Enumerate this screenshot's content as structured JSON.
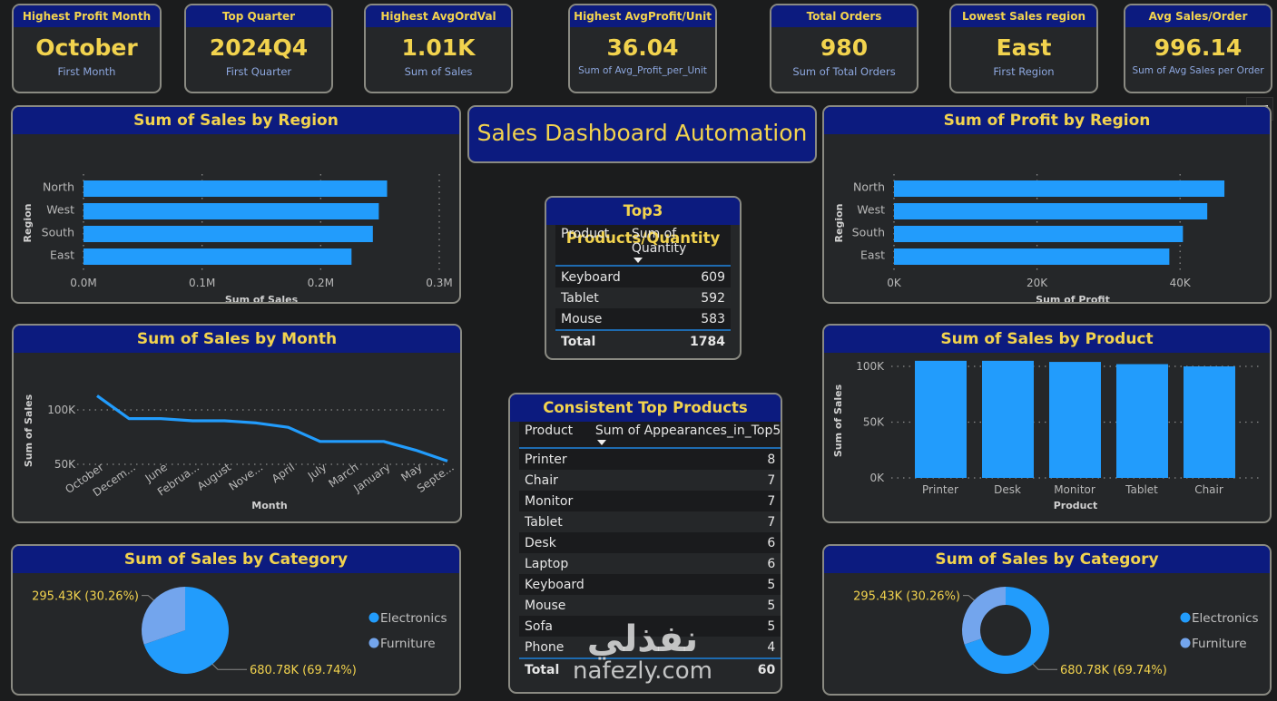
{
  "kpis": [
    {
      "title": "Highest Profit Month",
      "value": "October",
      "subtitle": "First Month"
    },
    {
      "title": "Top Quarter",
      "value": "2024Q4",
      "subtitle": "First Quarter"
    },
    {
      "title": "Highest AvgOrdVal",
      "value": "1.01K",
      "subtitle": "Sum of Sales"
    },
    {
      "title": "Highest AvgProfit/Unit",
      "value": "36.04",
      "subtitle": "Sum of Avg_Profit_per_Unit"
    },
    {
      "title": "Total Orders",
      "value": "980",
      "subtitle": "Sum of Total Orders"
    },
    {
      "title": "Lowest Sales region",
      "value": "East",
      "subtitle": "First Region"
    },
    {
      "title": "Avg Sales/Order",
      "value": "996.14",
      "subtitle": "Sum of Avg Sales per Order"
    }
  ],
  "dashboard_title": "Sales Dashboard Automation",
  "top3_table": {
    "title": "Top3 Products/Quantity",
    "columns": [
      "Product",
      "Sum of Quantity"
    ],
    "rows": [
      [
        "Keyboard",
        "609"
      ],
      [
        "Tablet",
        "592"
      ],
      [
        "Mouse",
        "583"
      ]
    ],
    "total": [
      "Total",
      "1784"
    ]
  },
  "consistent_table": {
    "title": "Consistent Top Products",
    "columns": [
      "Product",
      "Sum of Appearances_in_Top5"
    ],
    "rows": [
      [
        "Printer",
        "8"
      ],
      [
        "Chair",
        "7"
      ],
      [
        "Monitor",
        "7"
      ],
      [
        "Tablet",
        "7"
      ],
      [
        "Desk",
        "6"
      ],
      [
        "Laptop",
        "6"
      ],
      [
        "Keyboard",
        "5"
      ],
      [
        "Mouse",
        "5"
      ],
      [
        "Sofa",
        "5"
      ],
      [
        "Phone",
        "4"
      ]
    ],
    "total": [
      "Total",
      "60"
    ]
  },
  "watermark": {
    "arabic": "نفذلي",
    "latin": "nafezly.com"
  },
  "colors": {
    "bar": "#229cfc",
    "electronics": "#229cfc",
    "furniture": "#73a5ed",
    "header_bg": "#0c1b7f",
    "accent_text": "#f2d34e"
  },
  "chart_data": [
    {
      "id": "sales_by_region",
      "type": "bar",
      "orientation": "horizontal",
      "title": "Sum of Sales by Region",
      "xlabel": "Sum of Sales",
      "ylabel": "Region",
      "categories": [
        "North",
        "West",
        "South",
        "East"
      ],
      "values": [
        256000,
        249000,
        244000,
        226000
      ],
      "xlim": [
        0,
        300000
      ],
      "ticks": [
        0,
        100000,
        200000,
        300000
      ],
      "tick_labels": [
        "0.0M",
        "0.1M",
        "0.2M",
        "0.3M"
      ],
      "grid": true
    },
    {
      "id": "profit_by_region",
      "type": "bar",
      "orientation": "horizontal",
      "title": "Sum of Profit by Region",
      "xlabel": "Sum of Profit",
      "ylabel": "Region",
      "categories": [
        "North",
        "West",
        "South",
        "East"
      ],
      "values": [
        46200,
        43800,
        40400,
        38500
      ],
      "xlim": [
        0,
        50000
      ],
      "ticks": [
        0,
        20000,
        40000
      ],
      "tick_labels": [
        "0K",
        "20K",
        "40K"
      ],
      "grid": true
    },
    {
      "id": "sales_by_month",
      "type": "line",
      "title": "Sum of Sales by Month",
      "xlabel": "Month",
      "ylabel": "Sum of Sales",
      "categories": [
        "October",
        "Decem...",
        "June",
        "Februa...",
        "August",
        "Nove...",
        "April",
        "July",
        "March",
        "January",
        "May",
        "Septe..."
      ],
      "values": [
        113000,
        92000,
        92000,
        90000,
        90000,
        88000,
        84000,
        71000,
        71000,
        71000,
        63000,
        53000
      ],
      "ylim": [
        37000,
        120000
      ],
      "ticks": [
        50000,
        100000
      ],
      "tick_labels": [
        "50K",
        "100K"
      ],
      "grid": true
    },
    {
      "id": "sales_by_product",
      "type": "bar",
      "orientation": "vertical",
      "title": "Sum of Sales by Product",
      "xlabel": "Product",
      "ylabel": "Sum of Sales",
      "categories": [
        "Printer",
        "Desk",
        "Monitor",
        "Tablet",
        "Chair"
      ],
      "values": [
        105000,
        105000,
        104000,
        102000,
        100000
      ],
      "ylim": [
        0,
        105000
      ],
      "ticks": [
        0,
        50000,
        100000
      ],
      "tick_labels": [
        "0K",
        "50K",
        "100K"
      ],
      "grid": true
    },
    {
      "id": "sales_by_category_pie",
      "type": "pie",
      "title": "Sum of Sales by Category",
      "legend": "right",
      "labels": [
        "Electronics",
        "Furniture"
      ],
      "values": [
        680780,
        295430
      ],
      "data_labels": [
        "680.78K (69.74%)",
        "295.43K (30.26%)"
      ]
    },
    {
      "id": "sales_by_category_donut",
      "type": "pie",
      "variant": "donut",
      "title": "Sum of Sales by Category",
      "legend": "right",
      "labels": [
        "Electronics",
        "Furniture"
      ],
      "values": [
        680780,
        295430
      ],
      "data_labels": [
        "680.78K (69.74%)",
        "295.43K (30.26%)"
      ]
    }
  ]
}
